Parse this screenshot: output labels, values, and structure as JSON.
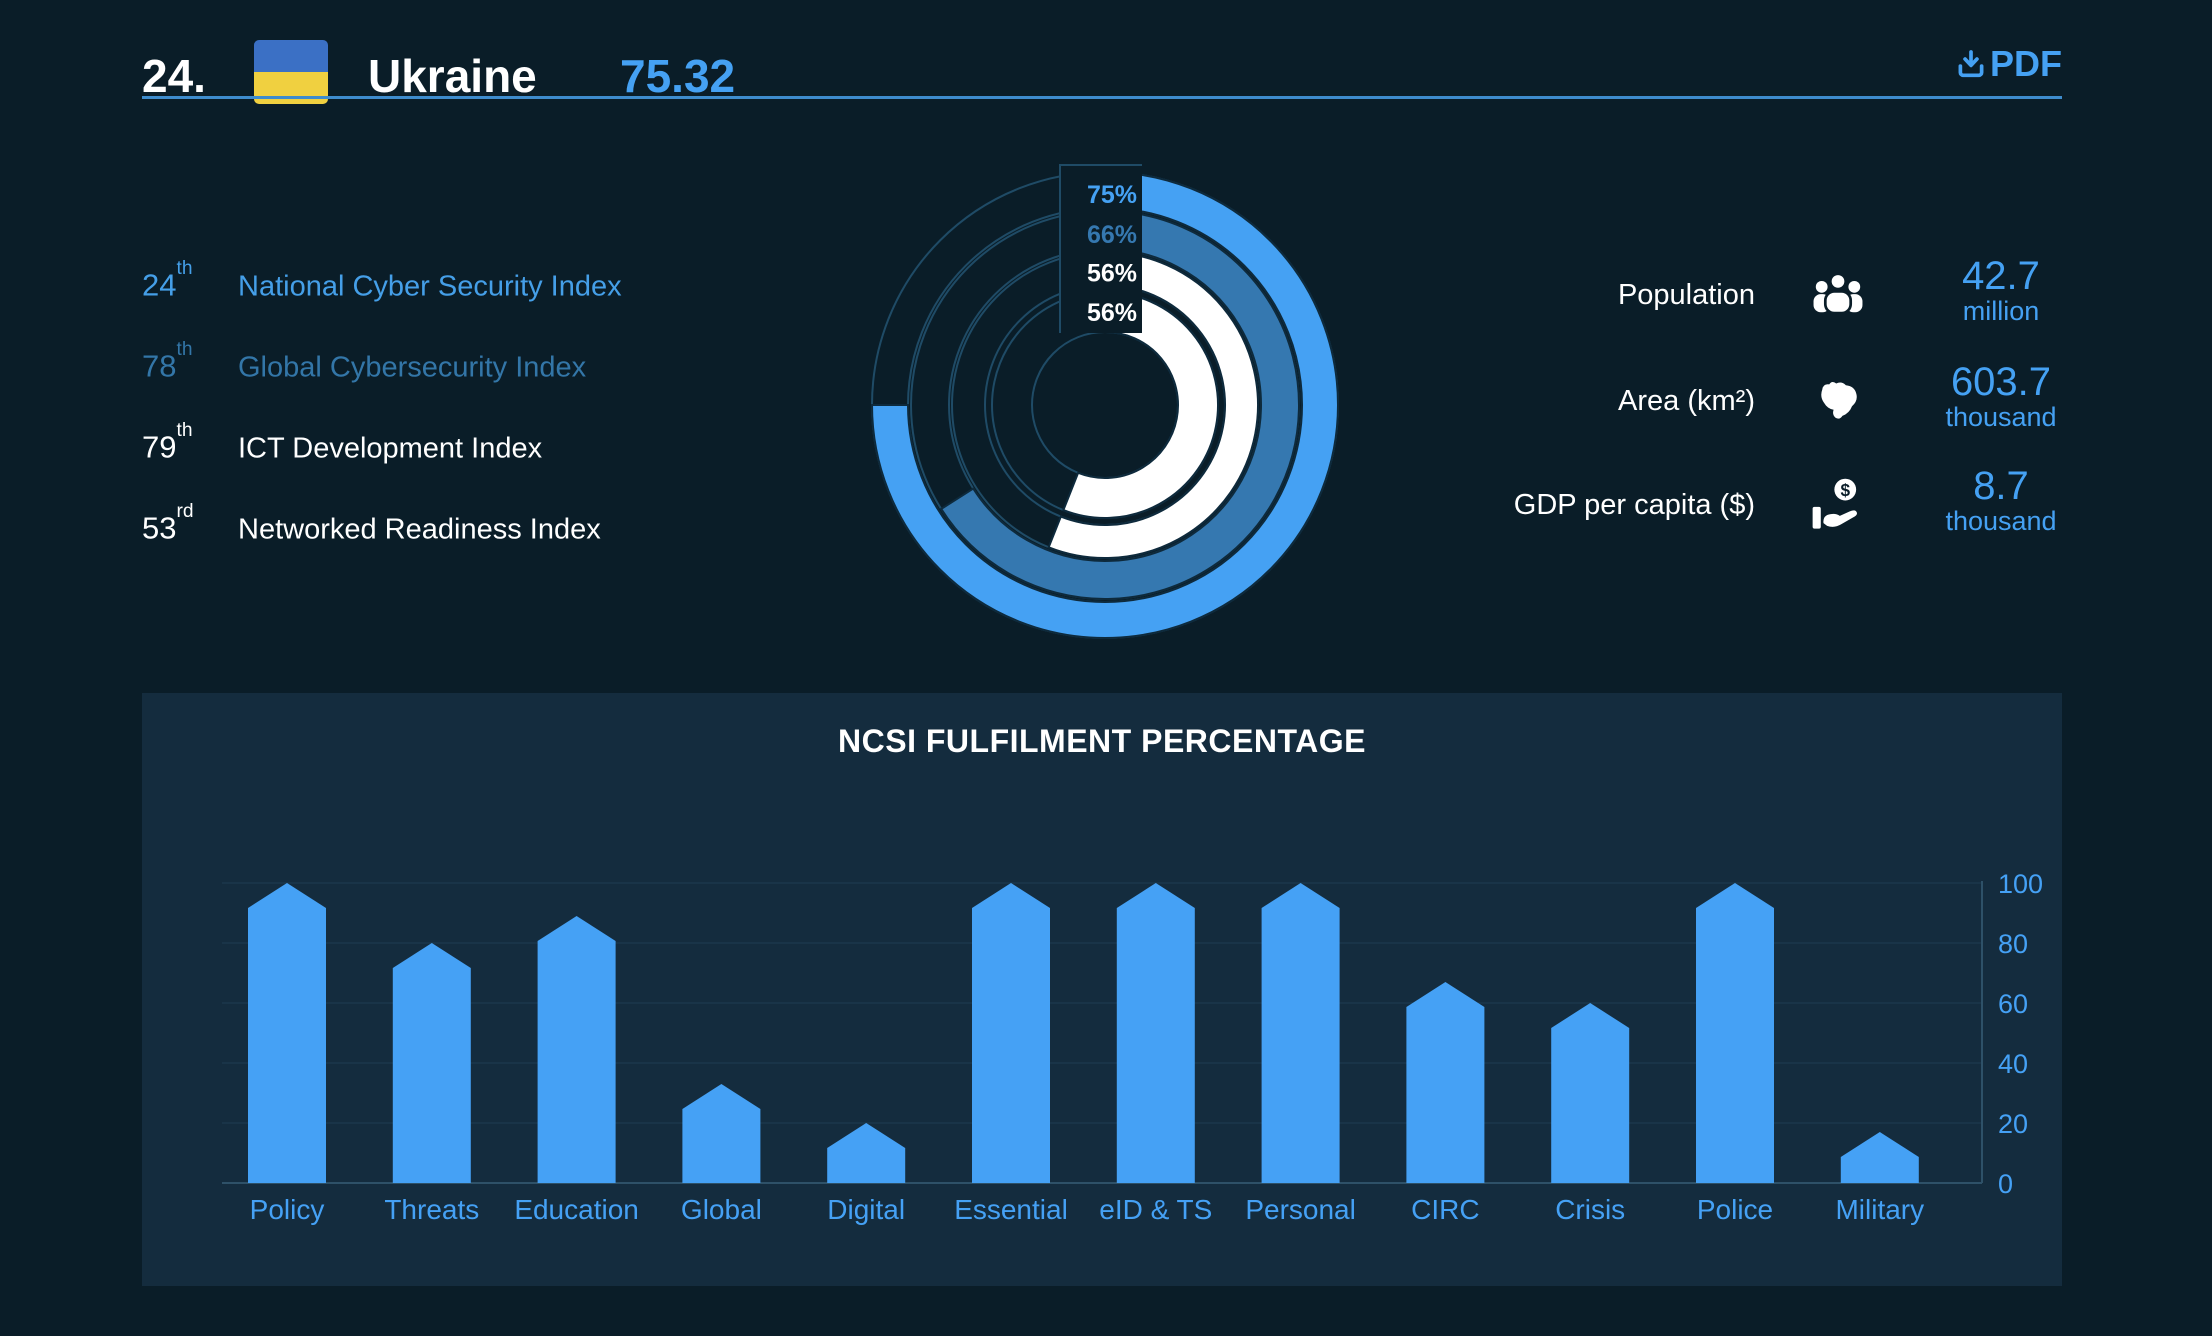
{
  "page": {
    "background_color": "#0a1d28",
    "panel_color": "#142c3e",
    "accent_color": "#45a1f3"
  },
  "header": {
    "rank": "24.",
    "country": "Ukraine",
    "score": "75.32",
    "pdf_label": "PDF",
    "flag": {
      "name": "ukraine-flag",
      "top_color": "#3b70c5",
      "bottom_color": "#f0d040"
    },
    "divider_color": "#3e8ccd"
  },
  "rankings": [
    {
      "rank": "24",
      "suffix": "th",
      "label": "National Cyber Security Index"
    },
    {
      "rank": "78",
      "suffix": "th",
      "label": "Global Cybersecurity Index"
    },
    {
      "rank": "79",
      "suffix": "th",
      "label": "ICT Development Index"
    },
    {
      "rank": "53",
      "suffix": "rd",
      "label": "Networked Readiness Index"
    }
  ],
  "stats": [
    {
      "label": "Population",
      "icon": "people-icon",
      "value": "42.7",
      "unit": "million"
    },
    {
      "label": "Area (km²)",
      "icon": "map-icon",
      "value": "603.7",
      "unit": "thousand"
    },
    {
      "label": "GDP per capita ($)",
      "icon": "money-hand-icon",
      "value": "8.7",
      "unit": "thousand"
    }
  ],
  "chart_data": [
    {
      "type": "bar",
      "title": "NCSI FULFILMENT PERCENTAGE",
      "categories": [
        "Policy",
        "Threats",
        "Education",
        "Global",
        "Digital",
        "Essential",
        "eID & TS",
        "Personal",
        "CIRC",
        "Crisis",
        "Police",
        "Military"
      ],
      "values": [
        100,
        80,
        89,
        33,
        20,
        100,
        100,
        100,
        67,
        60,
        100,
        17
      ],
      "xlabel": "",
      "ylabel": "",
      "ylim": [
        0,
        100
      ],
      "yticks": [
        0,
        20,
        40,
        60,
        80,
        100
      ],
      "ytick_side": "right",
      "grid": true,
      "bar_color": "#45a1f5",
      "grid_color": "#1e3c52",
      "axis_color": "#2e5168",
      "label_color": "#45a1f5"
    },
    {
      "type": "radial",
      "description": "Concentric progress rings drawn clockwise from top",
      "rings": [
        {
          "label": "75%",
          "value": 75,
          "color": "#45a1f3"
        },
        {
          "label": "66%",
          "value": 66,
          "color": "#3578b0"
        },
        {
          "label": "56%",
          "value": 56,
          "color": "#ffffff"
        },
        {
          "label": "56%",
          "value": 56,
          "color": "#ffffff"
        }
      ],
      "track_outline_color": "#1f4b66",
      "arc_outline_color": "#0e2a3c"
    }
  ]
}
